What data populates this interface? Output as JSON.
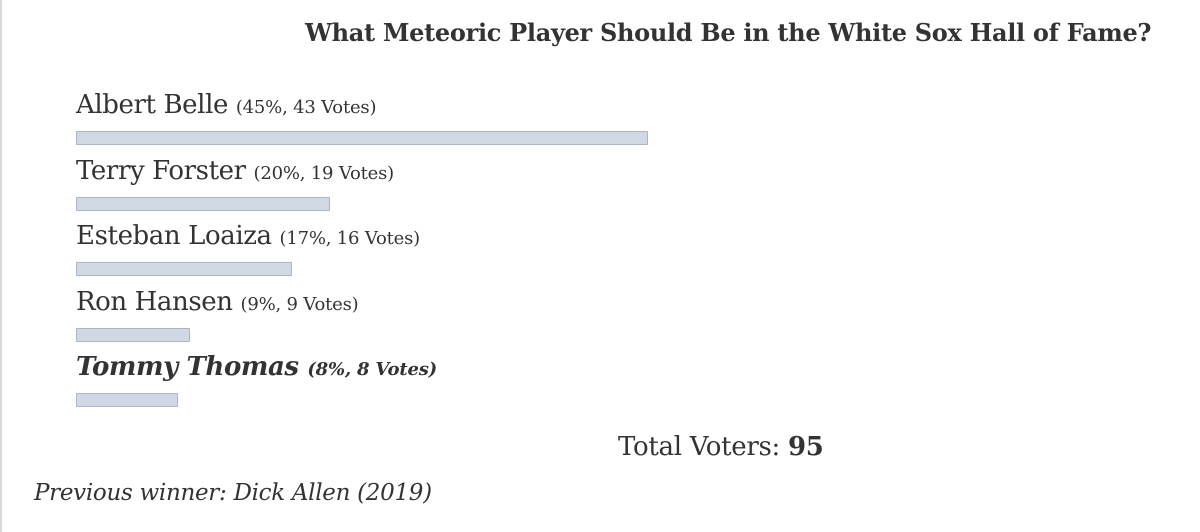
{
  "poll": {
    "title": "What Meteoric Player Should Be in the White Sox Hall of Fame?",
    "options": [
      {
        "name": "Albert Belle",
        "meta": "(45%, 43 Votes)",
        "percent": 45
      },
      {
        "name": "Terry Forster",
        "meta": "(20%, 19 Votes)",
        "percent": 20
      },
      {
        "name": "Esteban Loaiza",
        "meta": "(17%, 16 Votes)",
        "percent": 17
      },
      {
        "name": "Ron Hansen",
        "meta": "(9%, 9 Votes)",
        "percent": 9
      },
      {
        "name": "Tommy Thomas",
        "meta": "(8%, 8 Votes)",
        "percent": 8
      }
    ],
    "total_label": "Total Voters:",
    "total_value": "95",
    "previous_winner": "Previous winner: Dick Allen (2019)",
    "bar_color": "#cfd8e3",
    "bar_border_color": "#a9b6c6"
  }
}
